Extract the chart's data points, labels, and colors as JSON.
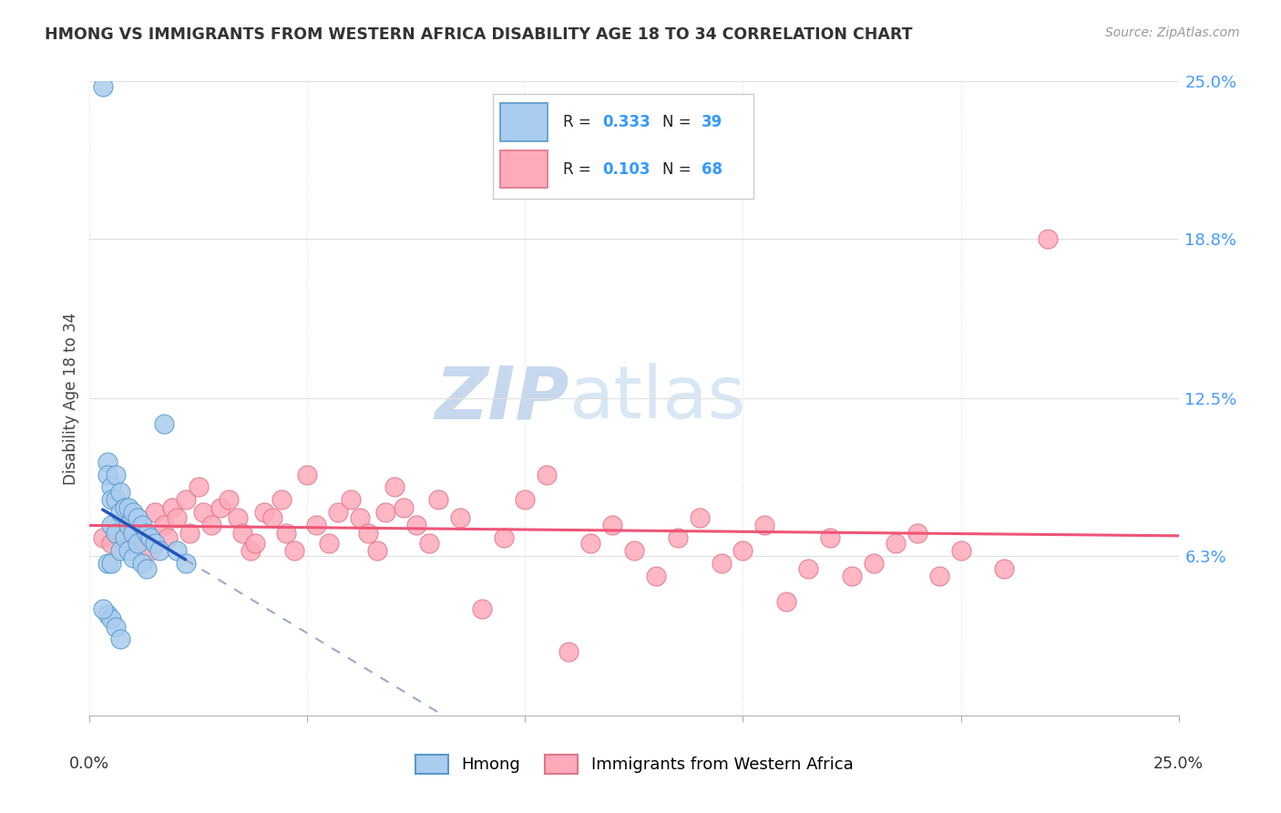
{
  "title": "HMONG VS IMMIGRANTS FROM WESTERN AFRICA DISABILITY AGE 18 TO 34 CORRELATION CHART",
  "source": "Source: ZipAtlas.com",
  "ylabel": "Disability Age 18 to 34",
  "xmin": 0.0,
  "xmax": 0.25,
  "ymin": 0.0,
  "ymax": 0.25,
  "ytick_labels": [
    "6.3%",
    "12.5%",
    "18.8%",
    "25.0%"
  ],
  "ytick_values": [
    0.063,
    0.125,
    0.188,
    0.25
  ],
  "legend_hmong_R": "0.333",
  "legend_hmong_N": "39",
  "legend_africa_R": "0.103",
  "legend_africa_N": "68",
  "hmong_face_color": "#aaccee",
  "hmong_edge_color": "#5599cc",
  "africa_face_color": "#ffaabb",
  "africa_edge_color": "#dd7788",
  "blue_solid_color": "#2255bb",
  "blue_dash_color": "#99aac8",
  "pink_line_color": "#ee5577",
  "watermark_color": "#ccddf0",
  "hmong_x": [
    0.003,
    0.004,
    0.004,
    0.004,
    0.005,
    0.005,
    0.005,
    0.005,
    0.006,
    0.006,
    0.006,
    0.007,
    0.007,
    0.007,
    0.008,
    0.008,
    0.009,
    0.009,
    0.009,
    0.01,
    0.01,
    0.01,
    0.011,
    0.011,
    0.012,
    0.012,
    0.013,
    0.013,
    0.014,
    0.015,
    0.016,
    0.017,
    0.02,
    0.022,
    0.004,
    0.005,
    0.006,
    0.007,
    0.003
  ],
  "hmong_y": [
    0.248,
    0.1,
    0.095,
    0.06,
    0.09,
    0.085,
    0.075,
    0.06,
    0.095,
    0.085,
    0.072,
    0.088,
    0.08,
    0.065,
    0.082,
    0.07,
    0.082,
    0.075,
    0.065,
    0.08,
    0.072,
    0.062,
    0.078,
    0.068,
    0.075,
    0.06,
    0.072,
    0.058,
    0.07,
    0.068,
    0.065,
    0.115,
    0.065,
    0.06,
    0.04,
    0.038,
    0.035,
    0.03,
    0.042
  ],
  "africa_x": [
    0.003,
    0.005,
    0.007,
    0.009,
    0.01,
    0.012,
    0.014,
    0.015,
    0.017,
    0.018,
    0.019,
    0.02,
    0.022,
    0.023,
    0.025,
    0.026,
    0.028,
    0.03,
    0.032,
    0.034,
    0.035,
    0.037,
    0.038,
    0.04,
    0.042,
    0.044,
    0.045,
    0.047,
    0.05,
    0.052,
    0.055,
    0.057,
    0.06,
    0.062,
    0.064,
    0.066,
    0.068,
    0.07,
    0.072,
    0.075,
    0.078,
    0.08,
    0.085,
    0.09,
    0.095,
    0.1,
    0.105,
    0.11,
    0.115,
    0.12,
    0.125,
    0.13,
    0.135,
    0.14,
    0.145,
    0.15,
    0.155,
    0.16,
    0.165,
    0.17,
    0.175,
    0.18,
    0.185,
    0.19,
    0.195,
    0.2,
    0.21,
    0.22
  ],
  "africa_y": [
    0.07,
    0.068,
    0.072,
    0.075,
    0.068,
    0.072,
    0.065,
    0.08,
    0.075,
    0.07,
    0.082,
    0.078,
    0.085,
    0.072,
    0.09,
    0.08,
    0.075,
    0.082,
    0.085,
    0.078,
    0.072,
    0.065,
    0.068,
    0.08,
    0.078,
    0.085,
    0.072,
    0.065,
    0.095,
    0.075,
    0.068,
    0.08,
    0.085,
    0.078,
    0.072,
    0.065,
    0.08,
    0.09,
    0.082,
    0.075,
    0.068,
    0.085,
    0.078,
    0.042,
    0.07,
    0.085,
    0.095,
    0.025,
    0.068,
    0.075,
    0.065,
    0.055,
    0.07,
    0.078,
    0.06,
    0.065,
    0.075,
    0.045,
    0.058,
    0.07,
    0.055,
    0.06,
    0.068,
    0.072,
    0.055,
    0.065,
    0.058,
    0.188
  ]
}
